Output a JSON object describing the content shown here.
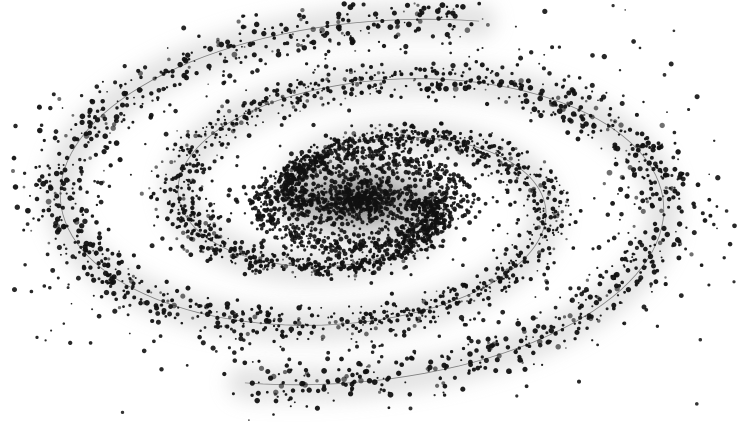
{
  "image": {
    "subject": "spiral-galaxy",
    "style": "stippled-dot-illustration",
    "colors": {
      "background": "#ffffff",
      "dots": "#111111",
      "arm_haze": "#cfcfcf",
      "arm_line": "#2a2a2a"
    }
  }
}
